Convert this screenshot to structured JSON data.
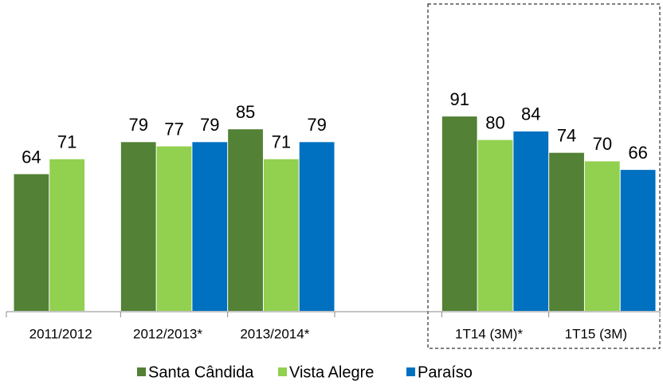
{
  "chart_data": {
    "type": "bar",
    "categories": [
      "2011/2012",
      "2012/2013*",
      "2013/2014*",
      null,
      "1T14 (3M)*",
      "1T15 (3M)"
    ],
    "series": [
      {
        "name": "Santa Cândida",
        "color": "#538135",
        "values": [
          64,
          79,
          85,
          null,
          91,
          74
        ]
      },
      {
        "name": "Vista Alegre",
        "color": "#92d050",
        "values": [
          71,
          77,
          71,
          null,
          80,
          70
        ]
      },
      {
        "name": "Paraíso",
        "color": "#0070c0",
        "values": [
          null,
          79,
          79,
          null,
          84,
          66
        ]
      }
    ],
    "ylim": [
      0,
      100
    ],
    "grid": false,
    "legend": "bottom"
  }
}
